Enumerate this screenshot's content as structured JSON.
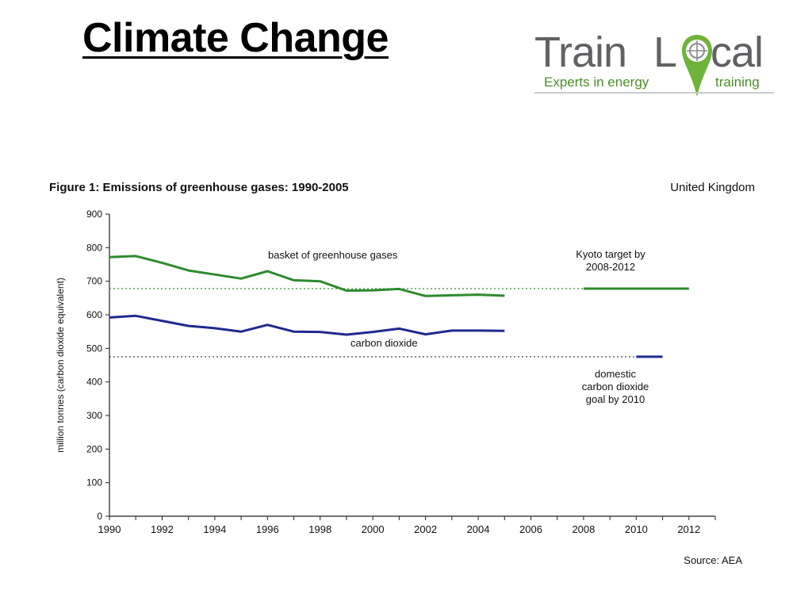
{
  "slide": {
    "title": "Climate Change"
  },
  "logo": {
    "word_first": "Train",
    "word_l": "L",
    "word_cal": "cal",
    "tagline_a": "Experts in energy",
    "tagline_b": "training",
    "colors": {
      "grey": "#5f6164",
      "green": "#4a8f2a"
    }
  },
  "chart_data": {
    "type": "line",
    "title": "Figure 1: Emissions of greenhouse gases: 1990-2005",
    "region": "United Kingdom",
    "ylabel": "million tonnes (carbon dioxide equivalent)",
    "xlabel": "",
    "source": "Source: AEA",
    "xlim": [
      1990,
      2013
    ],
    "ylim": [
      0,
      900
    ],
    "x_ticks": [
      1990,
      1992,
      1994,
      1996,
      1998,
      2000,
      2002,
      2004,
      2006,
      2008,
      2010,
      2012
    ],
    "y_ticks": [
      0,
      100,
      200,
      300,
      400,
      500,
      600,
      700,
      800,
      900
    ],
    "series": [
      {
        "name": "basket of greenhouse gases",
        "color": "#2e8b2e",
        "x": [
          1990,
          1991,
          1992,
          1993,
          1994,
          1995,
          1996,
          1997,
          1998,
          1999,
          2000,
          2001,
          2002,
          2003,
          2004,
          2005
        ],
        "y": [
          772,
          775,
          755,
          732,
          720,
          708,
          730,
          703,
          700,
          672,
          673,
          677,
          656,
          658,
          660,
          657
        ]
      },
      {
        "name": "carbon dioxide",
        "color": "#1f2a8f",
        "x": [
          1990,
          1991,
          1992,
          1993,
          1994,
          1995,
          1996,
          1997,
          1998,
          1999,
          2000,
          2001,
          2002,
          2003,
          2004,
          2005
        ],
        "y": [
          592,
          597,
          582,
          567,
          560,
          550,
          570,
          550,
          549,
          541,
          549,
          559,
          542,
          553,
          553,
          552
        ]
      }
    ],
    "targets": [
      {
        "label_lines": [
          "Kyoto target by",
          "2008-2012"
        ],
        "value": 678,
        "x_start": 2008,
        "x_end": 2012,
        "color": "#2e8b2e",
        "reference_line": "dotted",
        "ref_color": "#2e8b2e"
      },
      {
        "label_lines": [
          "domestic",
          "carbon dioxide",
          "goal by 2010"
        ],
        "value": 475,
        "x_start": 2010,
        "x_end": 2011,
        "color": "#1f2a8f",
        "reference_line": "dotted",
        "ref_color": "#333333"
      }
    ],
    "grid": false
  }
}
